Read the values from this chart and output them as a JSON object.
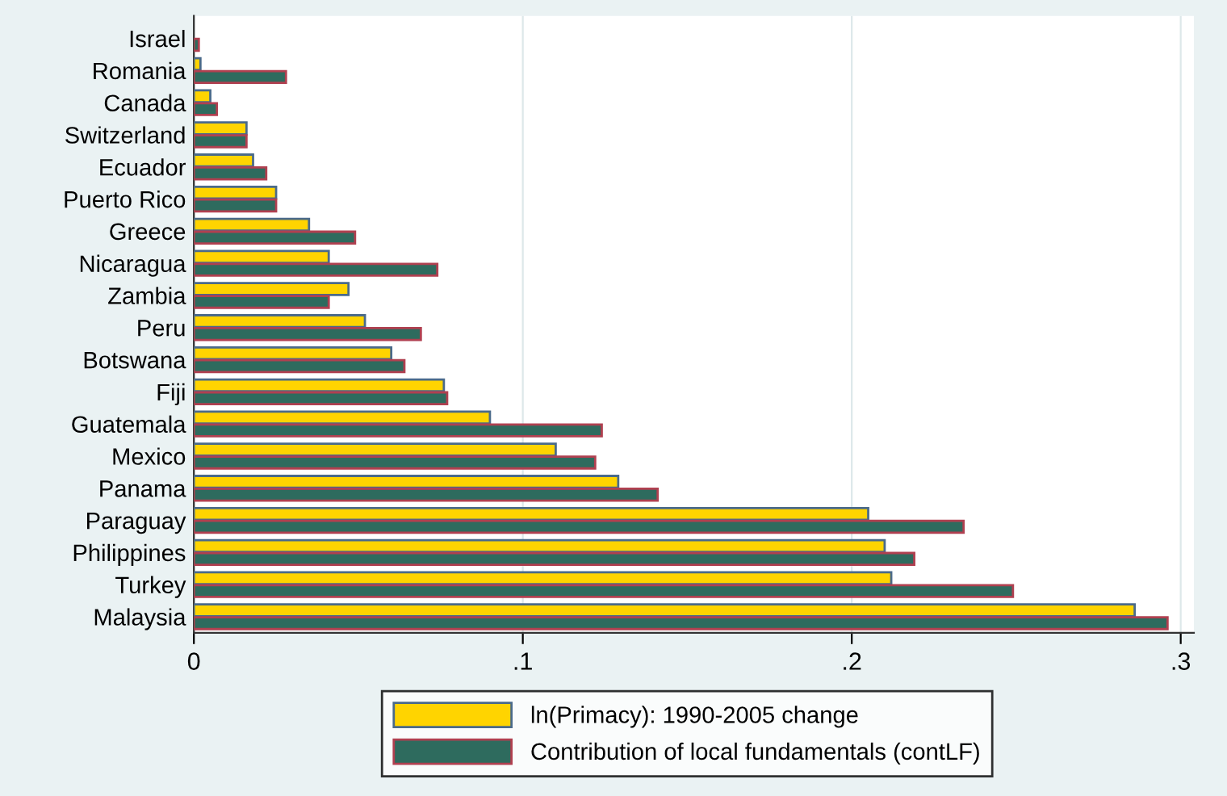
{
  "chart_data": {
    "type": "bar",
    "orientation": "horizontal",
    "categories": [
      "Israel",
      "Romania",
      "Canada",
      "Switzerland",
      "Ecuador",
      "Puerto Rico",
      "Greece",
      "Nicaragua",
      "Zambia",
      "Peru",
      "Botswana",
      "Fiji",
      "Guatemala",
      "Mexico",
      "Panama",
      "Paraguay",
      "Philippines",
      "Turkey",
      "Malaysia"
    ],
    "series": [
      {
        "name": "ln(Primacy): 1990-2005 change",
        "color": "#ffd400",
        "values": [
          null,
          0.002,
          0.005,
          0.016,
          0.018,
          0.025,
          0.035,
          0.041,
          0.047,
          0.052,
          0.06,
          0.076,
          0.09,
          0.11,
          0.129,
          0.205,
          0.21,
          0.212,
          0.286
        ]
      },
      {
        "name": "Contribution of local fundamentals (contLF)",
        "color": "#2e6b5e",
        "values": [
          0.0015,
          0.028,
          0.007,
          0.016,
          0.022,
          0.025,
          0.049,
          0.074,
          0.041,
          0.069,
          0.064,
          0.077,
          0.124,
          0.122,
          0.141,
          0.234,
          0.219,
          0.249,
          0.296
        ]
      }
    ],
    "xlim": [
      0,
      0.304
    ],
    "xticks": [
      {
        "value": 0,
        "label": "0"
      },
      {
        "value": 0.1,
        "label": ".1"
      },
      {
        "value": 0.2,
        "label": ".2"
      },
      {
        "value": 0.3,
        "label": ".3"
      }
    ],
    "grid": "x",
    "legend": "bottom"
  }
}
